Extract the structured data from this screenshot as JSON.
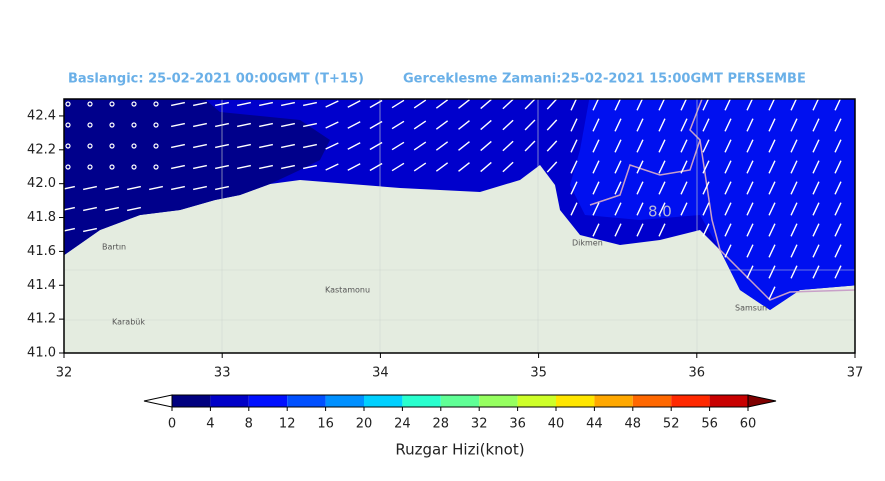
{
  "header": {
    "start": "Baslangic: 25-02-2021 00:00GMT (T+15)",
    "valid": "Gerceklesme Zamani:25-02-2021 15:00GMT PERSEMBE"
  },
  "map": {
    "xlim": [
      32,
      37
    ],
    "ylim": [
      41.0,
      42.5
    ],
    "xticks": [
      32,
      33,
      34,
      35,
      36,
      37
    ],
    "yticks": [
      {
        "value": 41.0,
        "label": "41.0"
      },
      41.2,
      41.4,
      41.6,
      41.8,
      {
        "value": 42.0,
        "label": "42.0"
      },
      42.2,
      42.4
    ],
    "contour_label": "8.0",
    "places": [
      "Bartın",
      "Karabük",
      "Kastamonu",
      "Dikmen",
      "Samsun"
    ]
  },
  "colorbar": {
    "label": "Ruzgar Hizi(knot)",
    "ticks": [
      0,
      4,
      8,
      12,
      16,
      20,
      24,
      28,
      32,
      36,
      40,
      44,
      48,
      52,
      56,
      60
    ],
    "colors": [
      "#00007f",
      "#0000c8",
      "#0010ff",
      "#0050ff",
      "#0090ff",
      "#00d0ff",
      "#29ffce",
      "#60ff96",
      "#96ff60",
      "#ceff29",
      "#ffe600",
      "#ffa800",
      "#ff6800",
      "#ff2900",
      "#c80000"
    ],
    "under": "#ffffff",
    "over": "#7f0000"
  }
}
